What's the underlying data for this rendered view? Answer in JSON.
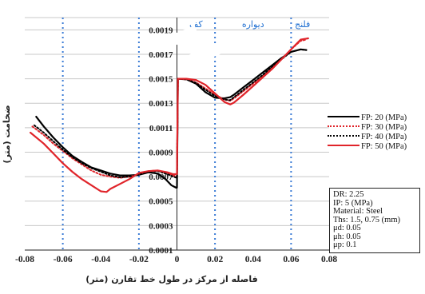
{
  "chart_data": {
    "type": "line",
    "xlabel": "فاصله از مرکز در طول خط تقارن (متر)",
    "ylabel": "ضخامت (متر)",
    "xlim": [
      -0.08,
      0.08
    ],
    "ylim": [
      0.0001,
      0.002
    ],
    "x_ticks": [
      -0.08,
      -0.06,
      -0.04,
      -0.02,
      0,
      0.02,
      0.04,
      0.06,
      0.08
    ],
    "x_tick_labels": [
      "-0.08",
      "-0.06",
      "-0.04",
      "-0.02",
      "0",
      "0.02",
      "0.04",
      "0.06",
      "0.08"
    ],
    "y_ticks": [
      0.0001,
      0.0003,
      0.0005,
      0.0007,
      0.0009,
      0.0011,
      0.0013,
      0.0015,
      0.0017,
      0.0019
    ],
    "y_tick_labels": [
      "0.0001",
      "0.0003",
      "0.0005",
      "0.0007",
      "0.0009",
      "0.0011",
      "0.0013",
      "0.0015",
      "0.0017",
      "0.0019"
    ],
    "grid": "horizontal",
    "legend_position": "right",
    "region_lines_x": [
      -0.06,
      -0.02,
      0.02,
      0.06
    ],
    "region_lines_x_mirror": [
      0.02,
      0.06
    ],
    "region_labels": [
      {
        "text": "کف",
        "x": 0.01
      },
      {
        "text": "دیواره",
        "x": 0.04
      },
      {
        "text": "فلنج",
        "x": 0.066
      }
    ],
    "region_label_color": "#1f6fd1",
    "series": [
      {
        "name": "FP: 20 (MPa)",
        "color": "#000000",
        "dash": "solid",
        "points": [
          [
            -0.074,
            0.00119
          ],
          [
            -0.07,
            0.00111
          ],
          [
            -0.065,
            0.00102
          ],
          [
            -0.06,
            0.00094
          ],
          [
            -0.055,
            0.00087
          ],
          [
            -0.05,
            0.00082
          ],
          [
            -0.045,
            0.000775
          ],
          [
            -0.04,
            0.00075
          ],
          [
            -0.035,
            0.000725
          ],
          [
            -0.03,
            0.00071
          ],
          [
            -0.025,
            0.00071
          ],
          [
            -0.02,
            0.000715
          ],
          [
            -0.015,
            0.000735
          ],
          [
            -0.01,
            0.000725
          ],
          [
            -0.006,
            0.00068
          ],
          [
            -0.003,
            0.00063
          ],
          [
            -0.0005,
            0.00061
          ],
          [
            0,
            0.00061
          ],
          [
            0.0005,
            0.0015
          ],
          [
            0.005,
            0.001495
          ],
          [
            0.01,
            0.00146
          ],
          [
            0.015,
            0.00139
          ],
          [
            0.02,
            0.001345
          ],
          [
            0.025,
            0.00134
          ],
          [
            0.028,
            0.00135
          ],
          [
            0.03,
            0.00137
          ],
          [
            0.035,
            0.00143
          ],
          [
            0.04,
            0.00149
          ],
          [
            0.045,
            0.00155
          ],
          [
            0.05,
            0.00161
          ],
          [
            0.055,
            0.00167
          ],
          [
            0.06,
            0.00172
          ],
          [
            0.065,
            0.00174
          ],
          [
            0.068,
            0.001735
          ]
        ]
      },
      {
        "name": "FP: 30 (MPa)",
        "color": "#e0242a",
        "dash": "dot",
        "points": [
          [
            -0.076,
            0.00111
          ],
          [
            -0.07,
            0.00104
          ],
          [
            -0.065,
            0.00097
          ],
          [
            -0.06,
            0.00091
          ],
          [
            -0.055,
            0.00085
          ],
          [
            -0.05,
            0.0008
          ],
          [
            -0.045,
            0.00075
          ],
          [
            -0.04,
            0.000715
          ],
          [
            -0.035,
            0.0007
          ],
          [
            -0.03,
            0.00069
          ],
          [
            -0.025,
            0.0007
          ],
          [
            -0.02,
            0.00072
          ],
          [
            -0.015,
            0.000745
          ],
          [
            -0.01,
            0.00075
          ],
          [
            -0.005,
            0.00073
          ],
          [
            -0.002,
            0.00071
          ],
          [
            0,
            0.0007
          ],
          [
            0.0005,
            0.0015
          ],
          [
            0.005,
            0.001495
          ],
          [
            0.01,
            0.00147
          ],
          [
            0.015,
            0.00142
          ],
          [
            0.02,
            0.00137
          ],
          [
            0.025,
            0.00133
          ],
          [
            0.028,
            0.00132
          ],
          [
            0.03,
            0.00134
          ],
          [
            0.035,
            0.0014
          ],
          [
            0.04,
            0.00146
          ],
          [
            0.045,
            0.00152
          ],
          [
            0.05,
            0.00159
          ],
          [
            0.055,
            0.00166
          ],
          [
            0.06,
            0.00174
          ],
          [
            0.065,
            0.00181
          ],
          [
            0.068,
            0.00182
          ]
        ]
      },
      {
        "name": "FP: 40 (MPa)",
        "color": "#000000",
        "dash": "dot",
        "points": [
          [
            -0.075,
            0.00112
          ],
          [
            -0.07,
            0.00106
          ],
          [
            -0.065,
            0.00099
          ],
          [
            -0.06,
            0.00092
          ],
          [
            -0.055,
            0.00086
          ],
          [
            -0.05,
            0.00081
          ],
          [
            -0.045,
            0.00077
          ],
          [
            -0.04,
            0.00074
          ],
          [
            -0.035,
            0.00071
          ],
          [
            -0.03,
            0.000695
          ],
          [
            -0.025,
            0.0007
          ],
          [
            -0.02,
            0.000715
          ],
          [
            -0.015,
            0.00074
          ],
          [
            -0.01,
            0.000745
          ],
          [
            -0.005,
            0.00072
          ],
          [
            -0.002,
            0.0007
          ],
          [
            0,
            0.00069
          ],
          [
            0.0005,
            0.0015
          ],
          [
            0.005,
            0.001495
          ],
          [
            0.01,
            0.001465
          ],
          [
            0.015,
            0.00141
          ],
          [
            0.02,
            0.00136
          ],
          [
            0.025,
            0.00133
          ],
          [
            0.028,
            0.001325
          ],
          [
            0.03,
            0.00135
          ],
          [
            0.035,
            0.00141
          ],
          [
            0.04,
            0.00147
          ],
          [
            0.045,
            0.00153
          ],
          [
            0.05,
            0.0016
          ],
          [
            0.055,
            0.00166
          ],
          [
            0.06,
            0.00172
          ],
          [
            0.065,
            0.00174
          ],
          [
            0.068,
            0.001735
          ]
        ]
      },
      {
        "name": "FP: 50 (MPa)",
        "color": "#e0242a",
        "dash": "solid",
        "points": [
          [
            -0.077,
            0.00106
          ],
          [
            -0.07,
            0.00097
          ],
          [
            -0.065,
            0.00089
          ],
          [
            -0.06,
            0.00081
          ],
          [
            -0.055,
            0.00074
          ],
          [
            -0.05,
            0.00068
          ],
          [
            -0.045,
            0.00063
          ],
          [
            -0.04,
            0.00058
          ],
          [
            -0.037,
            0.000575
          ],
          [
            -0.035,
            0.0006
          ],
          [
            -0.03,
            0.00064
          ],
          [
            -0.025,
            0.00068
          ],
          [
            -0.02,
            0.00073
          ],
          [
            -0.015,
            0.000745
          ],
          [
            -0.01,
            0.00075
          ],
          [
            -0.005,
            0.000735
          ],
          [
            -0.002,
            0.00072
          ],
          [
            0,
            0.00072
          ],
          [
            0.0005,
            0.0015
          ],
          [
            0.005,
            0.0015
          ],
          [
            0.01,
            0.00149
          ],
          [
            0.015,
            0.00145
          ],
          [
            0.02,
            0.00138
          ],
          [
            0.025,
            0.00131
          ],
          [
            0.028,
            0.00129
          ],
          [
            0.03,
            0.001305
          ],
          [
            0.035,
            0.00137
          ],
          [
            0.04,
            0.00144
          ],
          [
            0.045,
            0.00151
          ],
          [
            0.05,
            0.00158
          ],
          [
            0.055,
            0.00166
          ],
          [
            0.06,
            0.00174
          ],
          [
            0.065,
            0.00182
          ],
          [
            0.069,
            0.00183
          ]
        ]
      }
    ],
    "info_box": [
      "DR: 2.25",
      "IP: 5 (MPa)",
      "Material: Steel",
      "Ths: 1.5, 0.75 (mm)",
      "μd: 0.05",
      "μh: 0.05",
      "μp: 0.1"
    ]
  }
}
